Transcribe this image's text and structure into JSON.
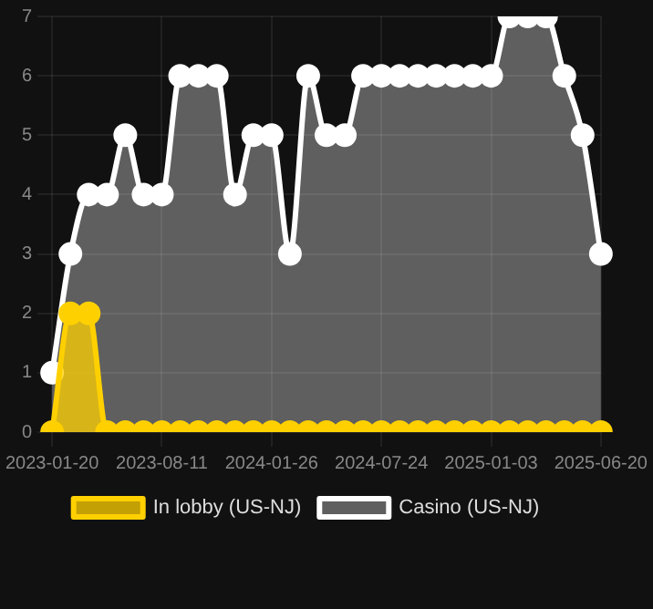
{
  "chart_data": {
    "type": "area",
    "categories": [
      "2023-01-20",
      null,
      null,
      null,
      null,
      null,
      "2023-08-11",
      null,
      null,
      null,
      null,
      null,
      "2024-01-26",
      null,
      null,
      null,
      null,
      null,
      "2024-07-24",
      null,
      null,
      null,
      null,
      null,
      "2025-01-03",
      null,
      null,
      null,
      null,
      null,
      "2025-06-20"
    ],
    "series": [
      {
        "name": "In lobby (US-NJ)",
        "color": "#ffd000",
        "values": [
          0,
          2,
          2,
          0,
          0,
          0,
          0,
          0,
          0,
          0,
          0,
          0,
          0,
          0,
          0,
          0,
          0,
          0,
          0,
          0,
          0,
          0,
          0,
          0,
          0,
          0,
          0,
          0,
          0,
          0,
          0
        ]
      },
      {
        "name": "Casino (US-NJ)",
        "color": "#ffffff",
        "values": [
          1,
          3,
          4,
          4,
          5,
          4,
          4,
          6,
          6,
          6,
          4,
          5,
          5,
          3,
          6,
          5,
          5,
          6,
          6,
          6,
          6,
          6,
          6,
          6,
          6,
          7,
          7,
          7,
          6,
          5,
          3
        ]
      }
    ],
    "ylim": [
      0,
      7
    ],
    "yticks": [
      0,
      1,
      2,
      3,
      4,
      5,
      6,
      7
    ],
    "grid": true,
    "legend": "bottom",
    "marker": "circle"
  }
}
